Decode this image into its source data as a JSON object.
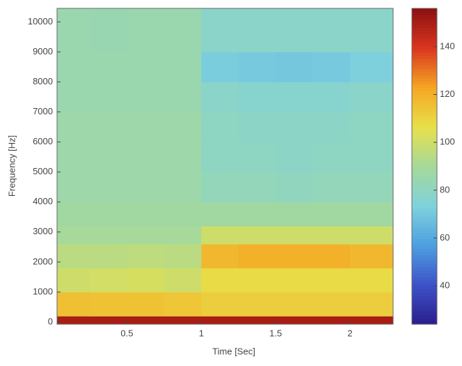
{
  "chart_data": {
    "type": "heatmap",
    "xlabel": "Time [Sec]",
    "ylabel": "Frequency [Hz]",
    "x_bins": [
      0.03,
      0.25,
      0.5,
      0.75,
      1.0,
      1.25,
      1.5,
      1.75,
      2.0,
      2.29
    ],
    "y_bins": [
      -70,
      200,
      1000,
      1800,
      2600,
      3200,
      4000,
      5000,
      6000,
      7000,
      8000,
      9000,
      10450
    ],
    "values": [
      [
        150,
        150,
        150,
        150,
        150,
        150,
        150,
        150,
        150
      ],
      [
        116,
        115,
        115,
        114,
        112,
        112,
        112,
        112,
        112
      ],
      [
        100,
        101,
        102,
        100,
        108,
        108,
        108,
        108,
        108
      ],
      [
        95,
        95,
        96,
        95,
        118,
        120,
        120,
        120,
        118
      ],
      [
        90,
        90,
        90,
        90,
        100,
        100,
        100,
        100,
        100
      ],
      [
        88,
        88,
        88,
        88,
        88,
        88,
        88,
        88,
        88
      ],
      [
        86,
        86,
        86,
        86,
        82,
        82,
        81,
        82,
        82
      ],
      [
        86,
        86,
        86,
        86,
        80,
        80,
        79,
        80,
        80
      ],
      [
        86,
        86,
        86,
        86,
        80,
        79,
        79,
        79,
        80
      ],
      [
        85,
        85,
        85,
        85,
        78,
        77,
        77,
        77,
        78
      ],
      [
        85,
        85,
        85,
        85,
        72,
        71,
        70,
        71,
        73
      ],
      [
        85,
        84,
        85,
        85,
        78,
        78,
        78,
        78,
        78
      ]
    ],
    "xlim": [
      0.03,
      2.29
    ],
    "xticks": [
      0.5,
      1,
      1.5,
      2
    ],
    "ylim": [
      -70,
      10450
    ],
    "yticks": [
      0,
      1000,
      2000,
      3000,
      4000,
      5000,
      6000,
      7000,
      8000,
      9000,
      10000
    ],
    "clim": [
      24,
      156
    ],
    "cticks": [
      40,
      60,
      80,
      100,
      120,
      140
    ],
    "colormap": [
      "#2a1e8c",
      "#3d52c8",
      "#4d9fe0",
      "#7fd2dc",
      "#a6d99a",
      "#e8e04a",
      "#f5a623",
      "#d9361f",
      "#8c1010"
    ]
  }
}
